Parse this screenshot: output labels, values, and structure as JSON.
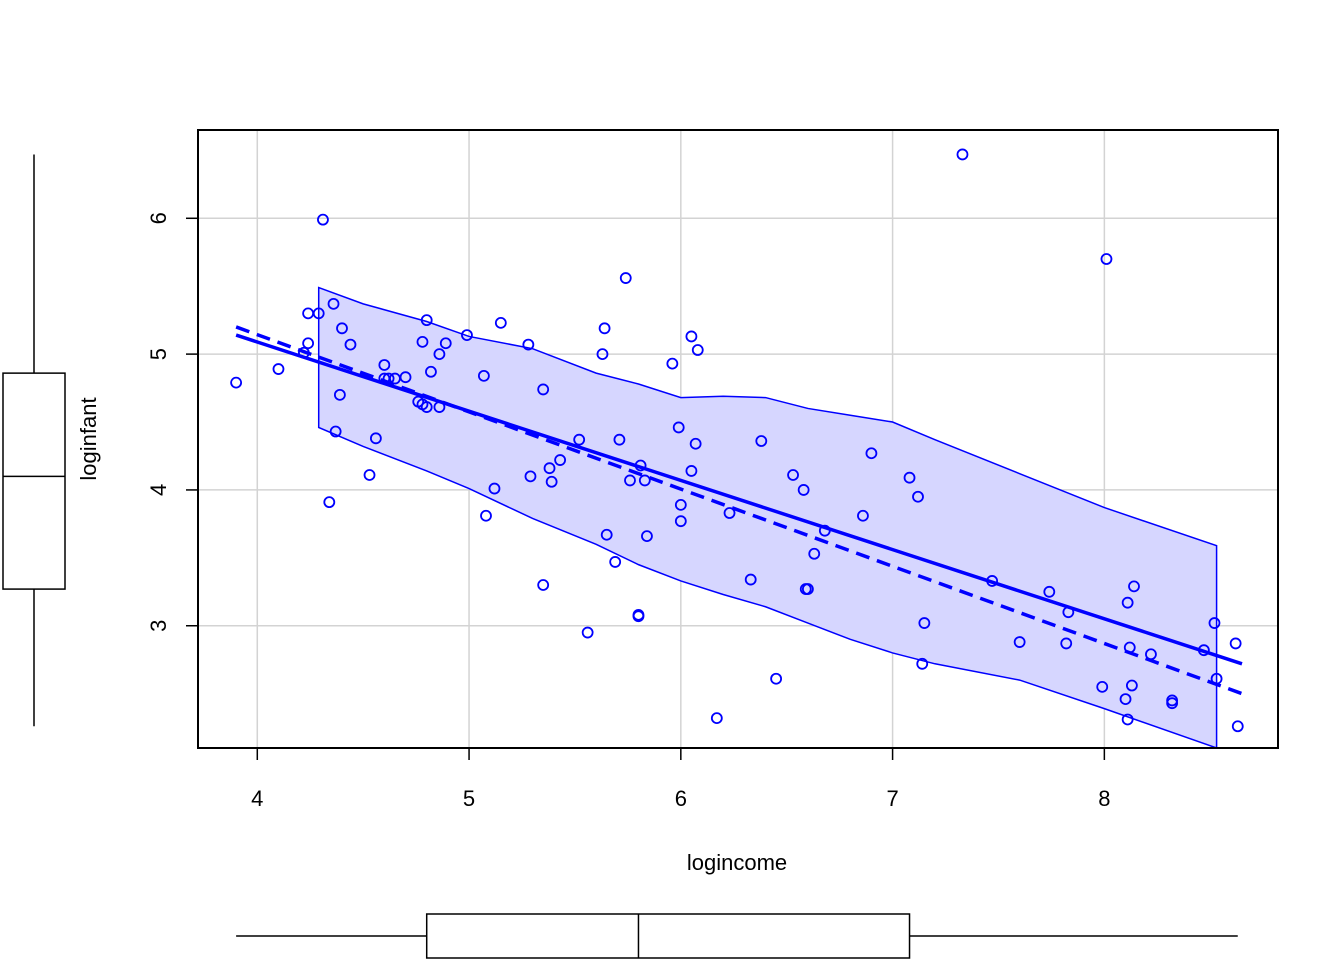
{
  "chart_data": {
    "type": "scatter",
    "xlabel": "logincome",
    "ylabel": "loginfant",
    "xlim": [
      3.72,
      8.82
    ],
    "ylim": [
      2.1,
      6.65
    ],
    "x_ticks": [
      4,
      5,
      6,
      7,
      8
    ],
    "y_ticks": [
      3,
      4,
      5,
      6
    ],
    "grid": true,
    "colors": {
      "points": "#0000ff",
      "band_fill": "#d6d6ff",
      "grid": "#d3d3d3",
      "axes": "#000000"
    },
    "points": [
      {
        "x": 3.9,
        "y": 4.79
      },
      {
        "x": 4.1,
        "y": 4.89
      },
      {
        "x": 4.22,
        "y": 5.01
      },
      {
        "x": 4.24,
        "y": 5.08
      },
      {
        "x": 4.24,
        "y": 5.3
      },
      {
        "x": 4.29,
        "y": 5.3
      },
      {
        "x": 4.31,
        "y": 5.99
      },
      {
        "x": 4.34,
        "y": 3.91
      },
      {
        "x": 4.36,
        "y": 5.37
      },
      {
        "x": 4.37,
        "y": 4.43
      },
      {
        "x": 4.39,
        "y": 4.7
      },
      {
        "x": 4.4,
        "y": 5.19
      },
      {
        "x": 4.44,
        "y": 5.07
      },
      {
        "x": 4.53,
        "y": 4.11
      },
      {
        "x": 4.56,
        "y": 4.38
      },
      {
        "x": 4.6,
        "y": 4.92
      },
      {
        "x": 4.6,
        "y": 4.82
      },
      {
        "x": 4.62,
        "y": 4.82
      },
      {
        "x": 4.65,
        "y": 4.82
      },
      {
        "x": 4.7,
        "y": 4.83
      },
      {
        "x": 4.76,
        "y": 4.65
      },
      {
        "x": 4.78,
        "y": 4.63
      },
      {
        "x": 4.78,
        "y": 5.09
      },
      {
        "x": 4.8,
        "y": 4.61
      },
      {
        "x": 4.8,
        "y": 5.25
      },
      {
        "x": 4.82,
        "y": 4.87
      },
      {
        "x": 4.86,
        "y": 5.0
      },
      {
        "x": 4.86,
        "y": 4.61
      },
      {
        "x": 4.89,
        "y": 5.08
      },
      {
        "x": 4.99,
        "y": 5.14
      },
      {
        "x": 5.07,
        "y": 4.84
      },
      {
        "x": 5.08,
        "y": 3.81
      },
      {
        "x": 5.12,
        "y": 4.01
      },
      {
        "x": 5.15,
        "y": 5.23
      },
      {
        "x": 5.28,
        "y": 5.07
      },
      {
        "x": 5.29,
        "y": 4.1
      },
      {
        "x": 5.35,
        "y": 4.74
      },
      {
        "x": 5.35,
        "y": 3.3
      },
      {
        "x": 5.38,
        "y": 4.16
      },
      {
        "x": 5.39,
        "y": 4.06
      },
      {
        "x": 5.43,
        "y": 4.22
      },
      {
        "x": 5.52,
        "y": 4.37
      },
      {
        "x": 5.56,
        "y": 2.95
      },
      {
        "x": 5.63,
        "y": 5.0
      },
      {
        "x": 5.64,
        "y": 5.19
      },
      {
        "x": 5.65,
        "y": 3.67
      },
      {
        "x": 5.69,
        "y": 3.47
      },
      {
        "x": 5.71,
        "y": 4.37
      },
      {
        "x": 5.74,
        "y": 5.56
      },
      {
        "x": 5.76,
        "y": 4.07
      },
      {
        "x": 5.8,
        "y": 3.07
      },
      {
        "x": 5.8,
        "y": 3.08
      },
      {
        "x": 5.81,
        "y": 4.18
      },
      {
        "x": 5.83,
        "y": 4.07
      },
      {
        "x": 5.84,
        "y": 3.66
      },
      {
        "x": 5.96,
        "y": 4.93
      },
      {
        "x": 5.99,
        "y": 4.46
      },
      {
        "x": 6.0,
        "y": 3.89
      },
      {
        "x": 6.0,
        "y": 3.77
      },
      {
        "x": 6.05,
        "y": 4.14
      },
      {
        "x": 6.05,
        "y": 5.13
      },
      {
        "x": 6.07,
        "y": 4.34
      },
      {
        "x": 6.08,
        "y": 5.03
      },
      {
        "x": 6.17,
        "y": 2.32
      },
      {
        "x": 6.23,
        "y": 3.83
      },
      {
        "x": 6.33,
        "y": 3.34
      },
      {
        "x": 6.38,
        "y": 4.36
      },
      {
        "x": 6.45,
        "y": 2.61
      },
      {
        "x": 6.53,
        "y": 4.11
      },
      {
        "x": 6.58,
        "y": 4.0
      },
      {
        "x": 6.59,
        "y": 3.27
      },
      {
        "x": 6.6,
        "y": 3.27
      },
      {
        "x": 6.63,
        "y": 3.53
      },
      {
        "x": 6.68,
        "y": 3.7
      },
      {
        "x": 6.86,
        "y": 3.81
      },
      {
        "x": 6.9,
        "y": 4.27
      },
      {
        "x": 7.08,
        "y": 4.09
      },
      {
        "x": 7.12,
        "y": 3.95
      },
      {
        "x": 7.14,
        "y": 2.72
      },
      {
        "x": 7.15,
        "y": 3.02
      },
      {
        "x": 7.33,
        "y": 6.47
      },
      {
        "x": 7.47,
        "y": 3.33
      },
      {
        "x": 7.6,
        "y": 2.88
      },
      {
        "x": 7.74,
        "y": 3.25
      },
      {
        "x": 7.82,
        "y": 2.87
      },
      {
        "x": 7.83,
        "y": 3.1
      },
      {
        "x": 7.99,
        "y": 2.55
      },
      {
        "x": 8.01,
        "y": 5.7
      },
      {
        "x": 8.1,
        "y": 2.46
      },
      {
        "x": 8.11,
        "y": 2.31
      },
      {
        "x": 8.11,
        "y": 3.17
      },
      {
        "x": 8.12,
        "y": 2.84
      },
      {
        "x": 8.13,
        "y": 2.56
      },
      {
        "x": 8.14,
        "y": 3.29
      },
      {
        "x": 8.22,
        "y": 2.79
      },
      {
        "x": 8.32,
        "y": 2.43
      },
      {
        "x": 8.32,
        "y": 2.45
      },
      {
        "x": 8.47,
        "y": 2.82
      },
      {
        "x": 8.52,
        "y": 3.02
      },
      {
        "x": 8.53,
        "y": 2.61
      },
      {
        "x": 8.62,
        "y": 2.87
      },
      {
        "x": 8.63,
        "y": 2.26
      }
    ],
    "fit_line": {
      "x": [
        3.9,
        8.65
      ],
      "y": [
        5.14,
        2.72
      ]
    },
    "smooth_line": {
      "x": [
        3.9,
        8.65
      ],
      "y": [
        5.2,
        2.5
      ]
    },
    "confidence_band": {
      "upper": {
        "x": [
          4.29,
          4.5,
          4.8,
          5.0,
          5.3,
          5.6,
          5.8,
          6.0,
          6.2,
          6.4,
          6.6,
          6.8,
          7.0,
          7.2,
          7.6,
          8.0,
          8.53
        ],
        "y": [
          5.49,
          5.37,
          5.24,
          5.13,
          5.04,
          4.86,
          4.78,
          4.68,
          4.69,
          4.68,
          4.6,
          4.55,
          4.5,
          4.37,
          4.12,
          3.87,
          3.59
        ]
      },
      "lower": {
        "x": [
          4.29,
          4.5,
          4.8,
          5.0,
          5.3,
          5.6,
          5.8,
          6.0,
          6.2,
          6.4,
          6.6,
          6.8,
          7.0,
          7.2,
          7.6,
          8.0,
          8.53
        ],
        "y": [
          4.46,
          4.32,
          4.14,
          4.01,
          3.79,
          3.6,
          3.45,
          3.33,
          3.23,
          3.14,
          3.02,
          2.9,
          2.8,
          2.72,
          2.6,
          2.39,
          2.1
        ]
      }
    },
    "y_boxplot": {
      "min": 2.26,
      "q1": 3.27,
      "median": 4.1,
      "q3": 4.86,
      "max": 6.47
    },
    "x_boxplot": {
      "min": 3.9,
      "q1": 4.8,
      "median": 5.8,
      "q3": 7.08,
      "max": 8.63
    }
  }
}
